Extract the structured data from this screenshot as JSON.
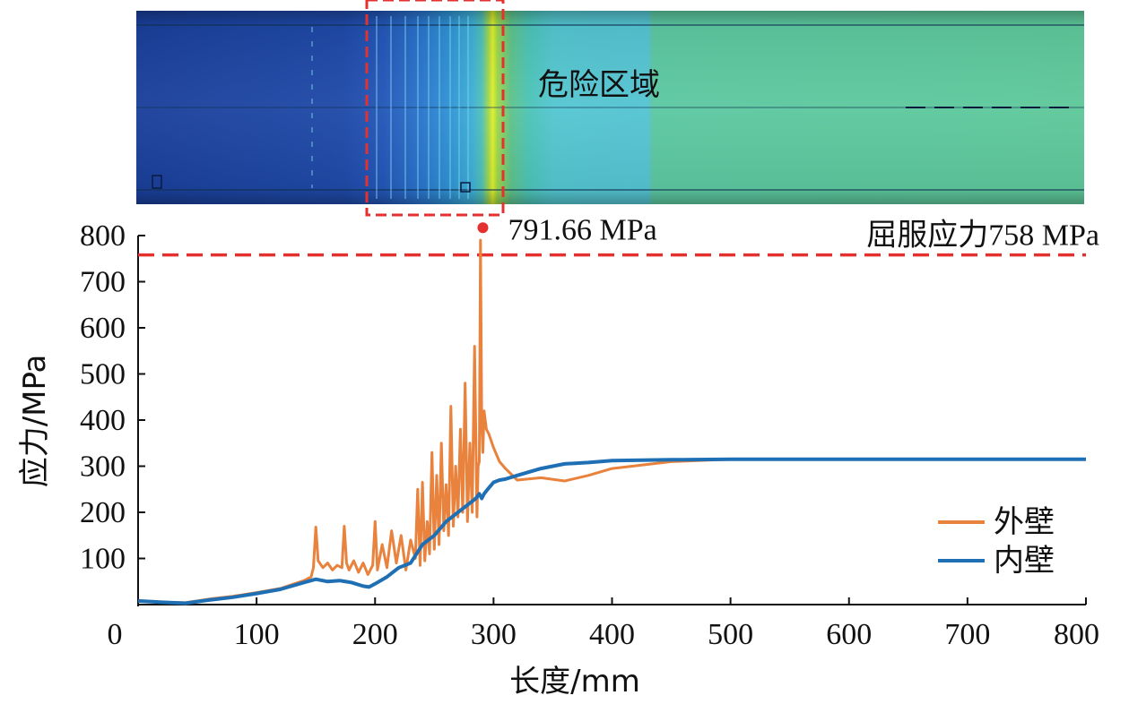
{
  "chart_data": {
    "type": "line",
    "title": "",
    "xlabel": "长度/mm",
    "ylabel": "应力/MPa",
    "xlim": [
      0,
      800
    ],
    "ylim": [
      0,
      800
    ],
    "x_ticks": [
      0,
      100,
      200,
      300,
      400,
      500,
      600,
      700,
      800
    ],
    "y_ticks": [
      100,
      200,
      300,
      400,
      500,
      600,
      700,
      800
    ],
    "colors": {
      "outer": "#e8823c",
      "inner": "#1f6fb4",
      "yield": "#e53030",
      "peak": "#e53030"
    },
    "series": [
      {
        "name": "外壁",
        "x": [
          0,
          20,
          40,
          60,
          80,
          100,
          120,
          140,
          146,
          148,
          150,
          152,
          156,
          160,
          164,
          168,
          172,
          174,
          176,
          178,
          182,
          186,
          190,
          194,
          198,
          200,
          202,
          206,
          210,
          214,
          218,
          222,
          226,
          230,
          234,
          236,
          238,
          240,
          242,
          244,
          246,
          248,
          250,
          252,
          254,
          256,
          258,
          260,
          262,
          264,
          266,
          268,
          270,
          272,
          274,
          276,
          278,
          280,
          282,
          284,
          286,
          287,
          288,
          289,
          290,
          291,
          292,
          294,
          296,
          300,
          305,
          310,
          320,
          340,
          360,
          380,
          400,
          450,
          500,
          550,
          600,
          700,
          800
        ],
        "y": [
          8,
          5,
          4,
          12,
          18,
          26,
          35,
          52,
          60,
          80,
          168,
          95,
          80,
          90,
          75,
          85,
          80,
          170,
          90,
          75,
          95,
          70,
          90,
          65,
          85,
          180,
          75,
          130,
          80,
          160,
          90,
          150,
          75,
          140,
          100,
          250,
          85,
          265,
          95,
          180,
          110,
          330,
          120,
          280,
          130,
          350,
          160,
          260,
          150,
          430,
          170,
          300,
          190,
          380,
          200,
          480,
          180,
          350,
          200,
          560,
          190,
          300,
          310,
          790,
          400,
          330,
          420,
          380,
          370,
          340,
          310,
          295,
          270,
          275,
          268,
          280,
          295,
          310,
          315,
          315,
          315,
          315,
          315
        ]
      },
      {
        "name": "内壁",
        "x": [
          0,
          20,
          40,
          60,
          80,
          100,
          120,
          140,
          150,
          160,
          170,
          180,
          190,
          195,
          200,
          210,
          220,
          230,
          240,
          250,
          260,
          270,
          280,
          285,
          288,
          290,
          292,
          295,
          300,
          305,
          310,
          320,
          340,
          360,
          380,
          400,
          450,
          500,
          550,
          600,
          700,
          800
        ],
        "y": [
          8,
          5,
          3,
          10,
          16,
          24,
          33,
          48,
          55,
          50,
          52,
          48,
          40,
          38,
          45,
          60,
          80,
          90,
          130,
          150,
          180,
          200,
          220,
          230,
          240,
          230,
          240,
          250,
          265,
          270,
          272,
          280,
          295,
          305,
          308,
          312,
          314,
          315,
          315,
          315,
          315,
          315
        ]
      }
    ],
    "annotations": {
      "yield_value": 758,
      "yield_label": "屈服应力758 MPa",
      "peak": {
        "x": 291,
        "y": 791.66,
        "label": "791.66 MPa"
      }
    },
    "contour_label": "危险区域"
  }
}
